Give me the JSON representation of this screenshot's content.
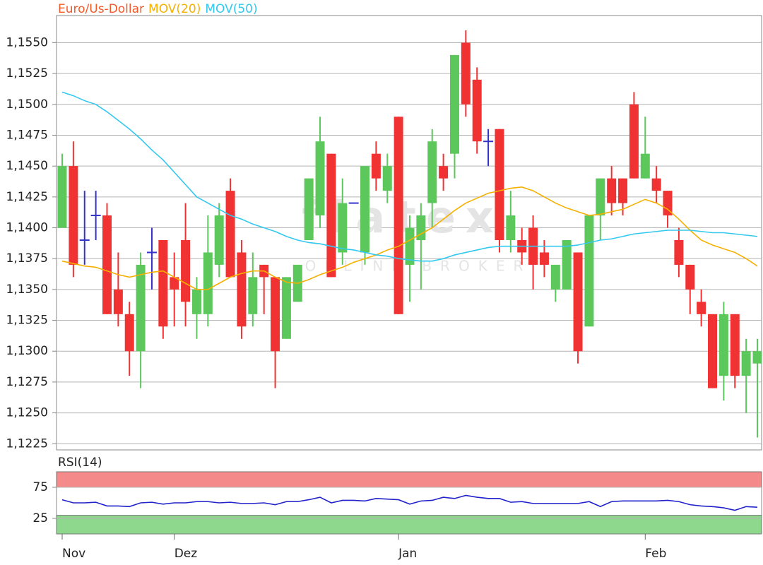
{
  "chart_data": [
    {
      "type": "candlestick",
      "categories": [
        "Nov",
        null,
        null,
        null,
        null,
        null,
        null,
        null,
        null,
        null,
        "Dez",
        null,
        null,
        null,
        null,
        null,
        null,
        null,
        null,
        null,
        null,
        null,
        null,
        null,
        null,
        null,
        null,
        null,
        null,
        null,
        "Jan",
        null,
        null,
        null,
        null,
        null,
        null,
        null,
        null,
        null,
        null,
        null,
        null,
        null,
        null,
        null,
        null,
        null,
        null,
        null,
        null,
        null,
        "Feb",
        null,
        null,
        null,
        null,
        null,
        null,
        null,
        null,
        null,
        null
      ],
      "series": [
        {
          "name": "Euro/Us-Dollar",
          "color": "#f05a28",
          "up_color": "#5cc85c",
          "down_color": "#f03232",
          "doji_color": "#3333cc",
          "open": [
            1.14,
            1.145,
            1.139,
            1.141,
            1.141,
            1.135,
            1.133,
            1.13,
            1.138,
            1.139,
            1.136,
            1.139,
            1.133,
            1.133,
            1.137,
            1.143,
            1.138,
            1.133,
            1.137,
            1.136,
            1.131,
            1.134,
            1.139,
            1.141,
            1.146,
            1.138,
            1.142,
            1.138,
            1.146,
            1.143,
            1.149,
            1.137,
            1.139,
            1.142,
            1.145,
            1.146,
            1.155,
            1.152,
            1.147,
            1.148,
            1.139,
            1.139,
            1.14,
            1.138,
            1.135,
            1.135,
            1.138,
            1.132,
            1.141,
            1.144,
            1.144,
            1.15,
            1.144,
            1.144,
            1.143,
            1.139,
            1.137,
            1.134,
            1.133,
            1.128,
            1.133,
            1.128,
            1.129
          ],
          "high": [
            1.146,
            1.147,
            1.143,
            1.143,
            1.142,
            1.138,
            1.134,
            1.138,
            1.14,
            1.139,
            1.138,
            1.142,
            1.136,
            1.141,
            1.142,
            1.144,
            1.139,
            1.138,
            1.137,
            1.136,
            1.136,
            1.137,
            1.144,
            1.149,
            1.146,
            1.144,
            1.142,
            1.145,
            1.147,
            1.146,
            1.149,
            1.141,
            1.142,
            1.148,
            1.146,
            1.154,
            1.156,
            1.153,
            1.148,
            1.148,
            1.143,
            1.14,
            1.141,
            1.139,
            1.137,
            1.139,
            1.138,
            1.141,
            1.144,
            1.145,
            1.144,
            1.151,
            1.149,
            1.145,
            1.143,
            1.14,
            1.137,
            1.135,
            1.133,
            1.134,
            1.133,
            1.131,
            1.131
          ],
          "low": [
            1.14,
            1.136,
            1.137,
            1.139,
            1.133,
            1.132,
            1.128,
            1.127,
            1.135,
            1.131,
            1.132,
            1.132,
            1.131,
            1.132,
            1.136,
            1.136,
            1.131,
            1.132,
            1.133,
            1.127,
            1.131,
            1.134,
            1.139,
            1.14,
            1.136,
            1.137,
            1.142,
            1.137,
            1.143,
            1.142,
            1.133,
            1.134,
            1.135,
            1.14,
            1.143,
            1.144,
            1.149,
            1.146,
            1.145,
            1.138,
            1.138,
            1.137,
            1.135,
            1.136,
            1.134,
            1.135,
            1.129,
            1.132,
            1.139,
            1.141,
            1.141,
            1.144,
            1.144,
            1.142,
            1.14,
            1.136,
            1.133,
            1.132,
            1.127,
            1.126,
            1.127,
            1.125,
            1.123
          ],
          "close": [
            1.145,
            1.137,
            1.139,
            1.141,
            1.133,
            1.133,
            1.13,
            1.137,
            1.138,
            1.132,
            1.135,
            1.134,
            1.135,
            1.138,
            1.141,
            1.136,
            1.132,
            1.136,
            1.136,
            1.13,
            1.136,
            1.137,
            1.144,
            1.147,
            1.136,
            1.142,
            1.142,
            1.145,
            1.144,
            1.145,
            1.133,
            1.14,
            1.141,
            1.147,
            1.144,
            1.154,
            1.15,
            1.147,
            1.147,
            1.139,
            1.141,
            1.138,
            1.137,
            1.137,
            1.137,
            1.139,
            1.13,
            1.141,
            1.144,
            1.142,
            1.142,
            1.144,
            1.146,
            1.143,
            1.141,
            1.137,
            1.135,
            1.133,
            1.127,
            1.133,
            1.128,
            1.13,
            1.13
          ]
        },
        {
          "name": "MOV(20)",
          "color": "#f5b000",
          "values": [
            1.1373,
            1.1371,
            1.1369,
            1.1368,
            1.1365,
            1.1362,
            1.136,
            1.1362,
            1.1364,
            1.1365,
            1.136,
            1.1355,
            1.135,
            1.135,
            1.1355,
            1.136,
            1.1363,
            1.1365,
            1.1365,
            1.136,
            1.1356,
            1.1355,
            1.1358,
            1.1362,
            1.1365,
            1.1368,
            1.1372,
            1.1375,
            1.1378,
            1.1382,
            1.1385,
            1.139,
            1.1395,
            1.14,
            1.1407,
            1.1414,
            1.142,
            1.1424,
            1.1428,
            1.143,
            1.1432,
            1.1433,
            1.143,
            1.1425,
            1.142,
            1.1416,
            1.1413,
            1.141,
            1.1411,
            1.1413,
            1.1415,
            1.1419,
            1.1423,
            1.142,
            1.1415,
            1.1407,
            1.1398,
            1.139,
            1.1386,
            1.1383,
            1.138,
            1.1375,
            1.1369
          ]
        },
        {
          "name": "MOV(50)",
          "color": "#33c8f0",
          "values": [
            1.151,
            1.1507,
            1.1503,
            1.15,
            1.1494,
            1.1487,
            1.148,
            1.1472,
            1.1463,
            1.1455,
            1.1445,
            1.1435,
            1.1425,
            1.142,
            1.1415,
            1.141,
            1.1407,
            1.1403,
            1.14,
            1.1397,
            1.1393,
            1.139,
            1.1388,
            1.1387,
            1.1385,
            1.1383,
            1.1382,
            1.138,
            1.1378,
            1.1377,
            1.1375,
            1.1374,
            1.1373,
            1.1373,
            1.1375,
            1.1378,
            1.138,
            1.1382,
            1.1384,
            1.1385,
            1.1385,
            1.1385,
            1.1385,
            1.1385,
            1.1385,
            1.1385,
            1.1386,
            1.1388,
            1.139,
            1.1391,
            1.1393,
            1.1395,
            1.1396,
            1.1397,
            1.1398,
            1.1398,
            1.1398,
            1.1397,
            1.1396,
            1.1396,
            1.1395,
            1.1394,
            1.1393
          ]
        }
      ],
      "ylim": [
        1.122,
        1.1572
      ],
      "yticks": [
        {
          "value": 1.1225,
          "label": "1,1225"
        },
        {
          "value": 1.125,
          "label": "1,1250"
        },
        {
          "value": 1.1275,
          "label": "1,1275"
        },
        {
          "value": 1.13,
          "label": "1,1300"
        },
        {
          "value": 1.1325,
          "label": "1,1325"
        },
        {
          "value": 1.135,
          "label": "1,1350"
        },
        {
          "value": 1.1375,
          "label": "1,1375"
        },
        {
          "value": 1.14,
          "label": "1,1400"
        },
        {
          "value": 1.1425,
          "label": "1,1425"
        },
        {
          "value": 1.145,
          "label": "1,1450"
        },
        {
          "value": 1.1475,
          "label": "1,1475"
        },
        {
          "value": 1.15,
          "label": "1,1500"
        },
        {
          "value": 1.1525,
          "label": "1,1525"
        },
        {
          "value": 1.155,
          "label": "1,1550"
        }
      ],
      "grid": true,
      "watermark": [
        "flatex",
        "ONLINE BROKER"
      ]
    },
    {
      "type": "line",
      "series": [
        {
          "name": "RSI(14)",
          "color": "#2222cc",
          "values": [
            55,
            50,
            50,
            51,
            45,
            45,
            44,
            50,
            51,
            48,
            50,
            50,
            52,
            52,
            50,
            51,
            49,
            49,
            50,
            47,
            52,
            52,
            55,
            59,
            50,
            54,
            54,
            53,
            57,
            56,
            55,
            48,
            53,
            54,
            59,
            57,
            62,
            59,
            57,
            57,
            51,
            52,
            49,
            49,
            49,
            49,
            49,
            52,
            44,
            52,
            53,
            53,
            53,
            53,
            54,
            52,
            47,
            45,
            44,
            42,
            38,
            44,
            43
          ]
        }
      ],
      "ylim": [
        0,
        100
      ],
      "yticks": [
        25,
        75
      ],
      "bands": [
        {
          "from": 75,
          "to": 100,
          "color": "#f58a8a"
        },
        {
          "from": 0,
          "to": 30,
          "color": "#8ed88e"
        }
      ]
    }
  ]
}
